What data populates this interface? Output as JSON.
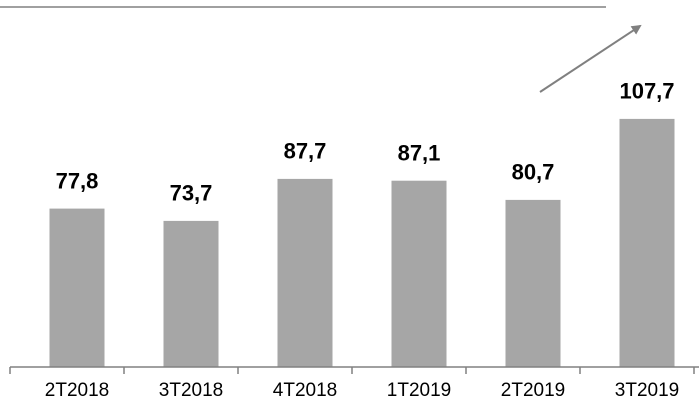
{
  "chart_data": {
    "type": "bar",
    "categories": [
      "2T2018",
      "3T2018",
      "4T2018",
      "1T2019",
      "2T2019",
      "3T2019"
    ],
    "values": [
      77.8,
      73.7,
      87.7,
      87.1,
      80.7,
      107.7
    ],
    "value_labels": [
      "77,8",
      "73,7",
      "87,7",
      "87,1",
      "80,7",
      "107,7"
    ],
    "color": "#a6a6a6",
    "ylim": [
      25,
      120
    ]
  }
}
